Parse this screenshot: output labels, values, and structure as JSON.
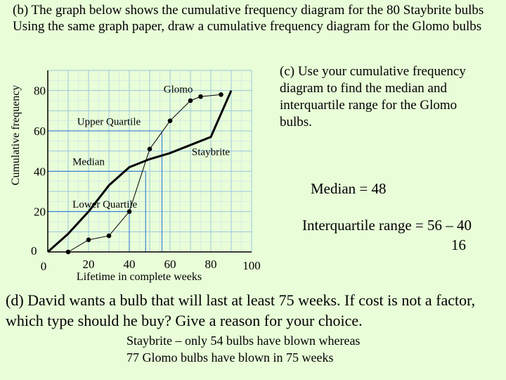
{
  "question": {
    "part_b_line1": "(b) The graph below shows the cumulative frequency diagram for the 80 Staybrite bulbs",
    "part_b_line2": "Using the same graph paper, draw a cumulative frequency diagram for the Glomo bulbs",
    "part_c": "(c) Use your cumulative frequency diagram to find the median and interquartile range for the Glomo bulbs.",
    "median_answer": "Median = 48",
    "iqr_answer_line1": "Interquartile range = 56 – 40",
    "iqr_answer_line2": "16",
    "part_d": "(d) David wants a bulb that will last at least 75 weeks. If cost is not a factor, which type should he buy? Give a reason for your choice.",
    "answer_line1": "Staybrite – only 54 bulbs have blown whereas",
    "answer_line2": "77 Glomo bulbs have blown in 75 weeks"
  },
  "chart_data": {
    "type": "line",
    "xlabel": "Lifetime in complete weeks",
    "ylabel": "Cumulative frequency",
    "xlim": [
      0,
      100
    ],
    "ylim": [
      0,
      90
    ],
    "x_ticks": [
      {
        "value": 0,
        "label": "0"
      },
      {
        "value": 20,
        "label": "20"
      },
      {
        "value": 40,
        "label": "40"
      },
      {
        "value": 60,
        "label": "60"
      },
      {
        "value": 80,
        "label": "80"
      },
      {
        "value": 100,
        "label": "100"
      }
    ],
    "y_ticks": [
      {
        "value": 0,
        "label": "0"
      },
      {
        "value": 20,
        "label": "20"
      },
      {
        "value": 40,
        "label": "40"
      },
      {
        "value": 60,
        "label": "60"
      },
      {
        "value": 80,
        "label": "80"
      }
    ],
    "grid": true,
    "series": [
      {
        "name": "Staybrite",
        "color": "#000000",
        "style": "thick-line",
        "x": [
          0,
          10,
          20,
          30,
          40,
          50,
          60,
          70,
          80,
          90
        ],
        "y": [
          0,
          9,
          20,
          33,
          42,
          46,
          49,
          53,
          57,
          80
        ]
      },
      {
        "name": "Glomo",
        "color": "#000000",
        "style": "thin-line-markers",
        "x": [
          10,
          20,
          30,
          40,
          50,
          60,
          70,
          75,
          85
        ],
        "y": [
          0,
          6,
          8,
          20,
          51,
          65,
          75,
          77,
          78
        ]
      }
    ],
    "annotations": [
      {
        "text": "Glomo",
        "x": 64,
        "y": 79
      },
      {
        "text": "Staybrite",
        "x": 80,
        "y": 48
      },
      {
        "text": "Upper Quartile",
        "x": 30,
        "y": 63
      },
      {
        "text": "Median",
        "x": 20,
        "y": 43
      },
      {
        "text": "Lower Quartile",
        "x": 28,
        "y": 22
      }
    ],
    "reference_lines": [
      {
        "type": "h",
        "y": 60,
        "x_to": 56
      },
      {
        "type": "v",
        "x": 56,
        "y_from": 60
      },
      {
        "type": "h",
        "y": 40,
        "x_to": 48
      },
      {
        "type": "v",
        "x": 48,
        "y_from": 40
      },
      {
        "type": "h",
        "y": 20,
        "x_to": 40
      },
      {
        "type": "v",
        "x": 40,
        "y_from": 20
      }
    ]
  },
  "colors": {
    "background": "#e8fdd8",
    "grid_minor": "#c9e3f0",
    "grid_major": "#9cc6de",
    "axis": "#000000",
    "reference_line": "#1e6fd6"
  }
}
